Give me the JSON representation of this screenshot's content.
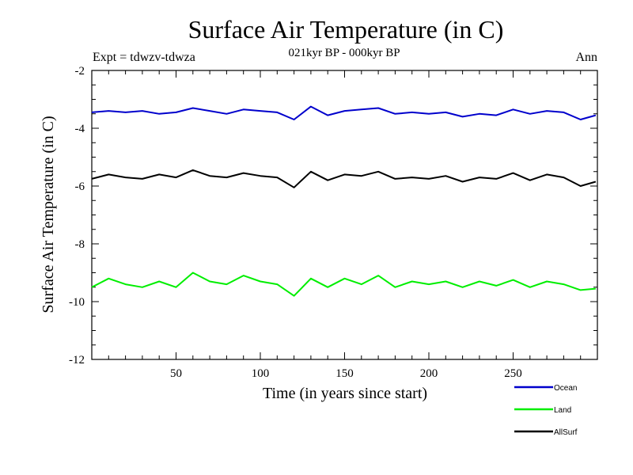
{
  "chart_data": {
    "type": "line",
    "title": "Surface Air Temperature (in C)",
    "subtitle": "021kyr BP - 000kyr BP",
    "left_label": "Expt = tdwzv-tdwza",
    "right_label": "Ann",
    "xlabel": "Time (in years since start)",
    "ylabel": "Surface Air Temperature (in C)",
    "xlim": [
      0,
      300
    ],
    "ylim": [
      -12,
      -2
    ],
    "xticks": [
      50,
      100,
      150,
      200,
      250
    ],
    "yticks": [
      -12,
      -10,
      -8,
      -6,
      -4,
      -2
    ],
    "x": [
      0,
      10,
      20,
      30,
      40,
      50,
      60,
      70,
      80,
      90,
      100,
      110,
      120,
      130,
      140,
      150,
      160,
      170,
      180,
      190,
      200,
      210,
      220,
      230,
      240,
      250,
      260,
      270,
      280,
      290,
      299
    ],
    "series": [
      {
        "name": "Ocean",
        "color": "#0000cc",
        "values": [
          -3.45,
          -3.4,
          -3.45,
          -3.4,
          -3.5,
          -3.45,
          -3.3,
          -3.4,
          -3.5,
          -3.35,
          -3.4,
          -3.45,
          -3.7,
          -3.25,
          -3.55,
          -3.4,
          -3.35,
          -3.3,
          -3.5,
          -3.45,
          -3.5,
          -3.45,
          -3.6,
          -3.5,
          -3.55,
          -3.35,
          -3.5,
          -3.4,
          -3.45,
          -3.7,
          -3.55
        ]
      },
      {
        "name": "Land",
        "color": "#00ee00",
        "values": [
          -9.5,
          -9.2,
          -9.4,
          -9.5,
          -9.3,
          -9.5,
          -9.0,
          -9.3,
          -9.4,
          -9.1,
          -9.3,
          -9.4,
          -9.8,
          -9.2,
          -9.5,
          -9.2,
          -9.4,
          -9.1,
          -9.5,
          -9.3,
          -9.4,
          -9.3,
          -9.5,
          -9.3,
          -9.45,
          -9.25,
          -9.5,
          -9.3,
          -9.4,
          -9.6,
          -9.55
        ]
      },
      {
        "name": "AllSurf",
        "color": "#000000",
        "values": [
          -5.75,
          -5.6,
          -5.7,
          -5.75,
          -5.6,
          -5.7,
          -5.45,
          -5.65,
          -5.7,
          -5.55,
          -5.65,
          -5.7,
          -6.05,
          -5.5,
          -5.8,
          -5.6,
          -5.65,
          -5.5,
          -5.75,
          -5.7,
          -5.75,
          -5.65,
          -5.85,
          -5.7,
          -5.75,
          -5.55,
          -5.8,
          -5.6,
          -5.7,
          -6.0,
          -5.85
        ]
      }
    ],
    "legend_position": "bottom-right",
    "grid": false
  }
}
